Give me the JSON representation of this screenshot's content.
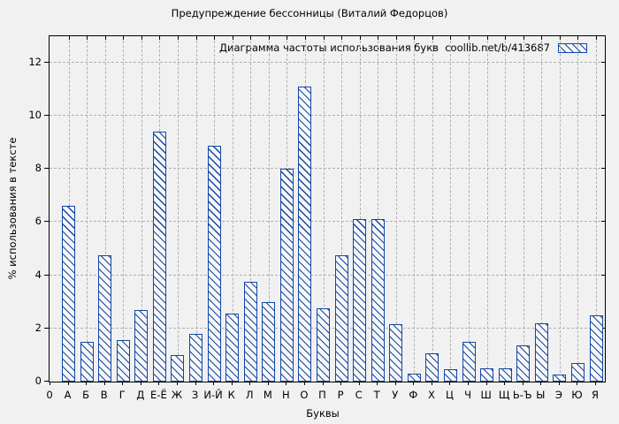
{
  "chart_data": {
    "type": "bar",
    "title": "Предупреждение бессонницы (Виталий Федорцов)",
    "legend": "Диаграмма частоты использования букв  coollib.net/b/413687",
    "xlabel": "Буквы",
    "ylabel": "% использования в тексте",
    "origin_label": "0",
    "categories": [
      "А",
      "Б",
      "В",
      "Г",
      "Д",
      "Е-Ё",
      "Ж",
      "З",
      "И-Й",
      "К",
      "Л",
      "М",
      "Н",
      "О",
      "П",
      "Р",
      "С",
      "Т",
      "У",
      "Ф",
      "Х",
      "Ц",
      "Ч",
      "Ш",
      "Щ",
      "Ь-Ъ",
      "Ы",
      "Э",
      "Ю",
      "Я"
    ],
    "values": [
      6.6,
      1.5,
      4.75,
      1.55,
      2.7,
      9.4,
      1.0,
      1.8,
      8.85,
      2.55,
      3.75,
      3.0,
      8.0,
      11.1,
      2.75,
      4.75,
      6.1,
      6.1,
      2.15,
      0.3,
      1.05,
      0.45,
      1.5,
      0.5,
      0.5,
      1.35,
      2.2,
      0.25,
      0.7,
      2.5
    ],
    "y_ticks": [
      0,
      2,
      4,
      6,
      8,
      10,
      12
    ],
    "ylim": [
      0,
      12.95
    ],
    "grid": true,
    "legend_position": "top-right",
    "colors": {
      "bar": "#1346a5",
      "bar_fill": "#f7f7f7",
      "grid": "#b0b0b0",
      "axis": "#000000",
      "background": "#f1f1f1"
    }
  }
}
